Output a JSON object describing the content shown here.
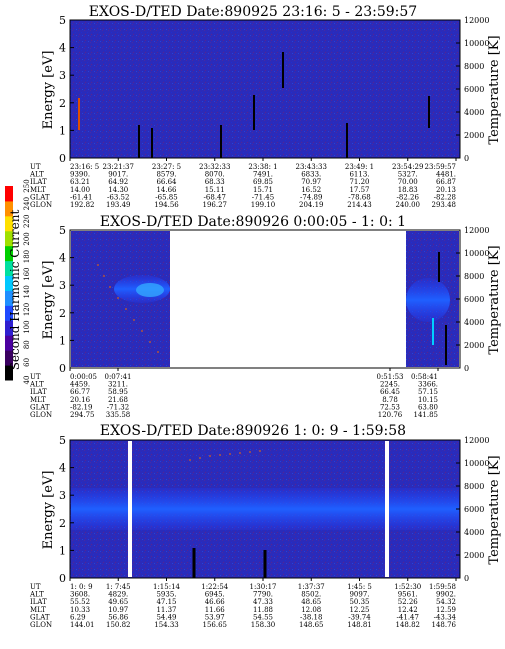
{
  "chart_data": [
    {
      "type": "heatmap",
      "title": "EXOS-D/TED  Date:890925  23:16: 5 - 23:59:57",
      "ylabel": "Energy [eV]",
      "y2label": "Temperature [K]",
      "ylim": [
        0,
        5
      ],
      "y_ticks": [
        "0",
        "1",
        "2",
        "3",
        "4",
        "5"
      ],
      "y2lim": [
        0,
        12000
      ],
      "y2_ticks": [
        "0",
        "2000",
        "4000",
        "6000",
        "8000",
        "10000",
        "12000"
      ],
      "data_gaps": [],
      "orbit_table": {
        "row_labels": [
          "UT",
          "ALT",
          "ILAT",
          "MLT",
          "GLAT",
          "GLON"
        ],
        "columns": [
          [
            "23:16: 5",
            "9390.",
            "63.21",
            "14.00",
            "-61.41",
            "192.82"
          ],
          [
            "23:21:37",
            "9017.",
            "64.92",
            "14.30",
            "-63.52",
            "193.49"
          ],
          [
            "23:27: 5",
            "8579.",
            "66.64",
            "14.66",
            "-65.85",
            "194.56"
          ],
          [
            "23:32:33",
            "8070.",
            "68.33",
            "15.11",
            "-68.47",
            "196.27"
          ],
          [
            "23:38: 1",
            "7491.",
            "69.85",
            "15.71",
            "-71.45",
            "199.10"
          ],
          [
            "23:43:33",
            "6833.",
            "70.97",
            "16.52",
            "-74.89",
            "204.19"
          ],
          [
            "23:49: 1",
            "6113.",
            "71.20",
            "17.57",
            "-78.68",
            "214.43"
          ],
          [
            "23:54:29",
            "5327.",
            "70.00",
            "18.83",
            "-82.26",
            "240.00"
          ],
          [
            "23:59:57",
            "4481.",
            "66.87",
            "20.13",
            "-82.28",
            "293.48"
          ]
        ]
      }
    },
    {
      "type": "heatmap",
      "title": "EXOS-D/TED   Date:890926  0:00:05 - 1: 0: 1",
      "ylabel": "Energy [eV]",
      "y2label": "Temperature [K]",
      "ylim": [
        0,
        5
      ],
      "y_ticks": [
        "0",
        "1",
        "2",
        "3",
        "4",
        "5"
      ],
      "y2lim": [
        0,
        12000
      ],
      "y2_ticks": [
        "0",
        "2000",
        "4000",
        "6000",
        "8000",
        "10000",
        "12000"
      ],
      "data_gaps": [
        [
          "0:07:41",
          "0:51:53"
        ]
      ],
      "orbit_table": {
        "row_labels": [
          "UT",
          "ALT",
          "ILAT",
          "MLT",
          "GLAT",
          "GLON"
        ],
        "columns": [
          [
            "0:00:05",
            "4459.",
            "66.77",
            "20.16",
            "-82.19",
            "294.75"
          ],
          [
            "0:07:41",
            "3211.",
            "58.95",
            "21.68",
            "-71.32",
            "335.58"
          ],
          [
            "0:51:53",
            "2245.",
            "66.45",
            "8.78",
            "72.53",
            "120.76"
          ],
          [
            "0:58:41",
            "3366.",
            "57.15",
            "10.15",
            "63.80",
            "141.85"
          ]
        ]
      }
    },
    {
      "type": "heatmap",
      "title": "EXOS-D/TED   Date:890926  1: 0: 9 - 1:59:58",
      "ylabel": "Energy [eV]",
      "y2label": "Temperature [K]",
      "ylim": [
        0,
        5
      ],
      "y_ticks": [
        "0",
        "1",
        "2",
        "3",
        "4",
        "5"
      ],
      "y2lim": [
        0,
        12000
      ],
      "y2_ticks": [
        "0",
        "2000",
        "4000",
        "6000",
        "8000",
        "10000",
        "12000"
      ],
      "data_gaps": [
        [
          "1: 7:45",
          "1: 8:40"
        ],
        [
          "1:48:00",
          "1:48:40"
        ]
      ],
      "orbit_table": {
        "row_labels": [
          "UT",
          "ALT",
          "ILAT",
          "MLT",
          "GLAT",
          "GLON"
        ],
        "columns": [
          [
            "1: 0: 9",
            "3608.",
            "55.52",
            "10.33",
            "6.29",
            "144.01"
          ],
          [
            "1: 7:45",
            "4829.",
            "49.65",
            "10.97",
            "56.86",
            "150.82"
          ],
          [
            "1:15:14",
            "5935.",
            "47.15",
            "11.37",
            "54.49",
            "154.33"
          ],
          [
            "1:22:54",
            "6945.",
            "46.66",
            "11.66",
            "53.97",
            "156.65"
          ],
          [
            "1:30:17",
            "7790.",
            "47.33",
            "11.88",
            "54.55",
            "158.30"
          ],
          [
            "1:37:37",
            "8502.",
            "48.65",
            "12.08",
            "-38.18",
            "148.65"
          ],
          [
            "1:45: 5",
            "9097.",
            "50.35",
            "12.25",
            "-39.74",
            "148.81"
          ],
          [
            "1:52:30",
            "9561.",
            "52.26",
            "12.42",
            "-41.47",
            "148.82"
          ],
          [
            "1:59:58",
            "9902.",
            "54.32",
            "12.59",
            "-43.34",
            "148.76"
          ]
        ]
      }
    }
  ],
  "colorbar": {
    "label": "Second Harmonic Current",
    "ticks": [
      "40",
      "60",
      "80",
      "100",
      "120",
      "140",
      "160",
      "180",
      "200",
      "220",
      "240",
      "250"
    ],
    "colors": [
      "#000000",
      "#3a0060",
      "#4b00a0",
      "#2f1fd0",
      "#1f49ff",
      "#1f8fff",
      "#00c8ff",
      "#00e0a0",
      "#00d000",
      "#a0e000",
      "#ffe000",
      "#ff9000",
      "#ff0000"
    ]
  },
  "colors": {
    "background_field": "#2a2ab8",
    "band": "#1e46ff"
  }
}
